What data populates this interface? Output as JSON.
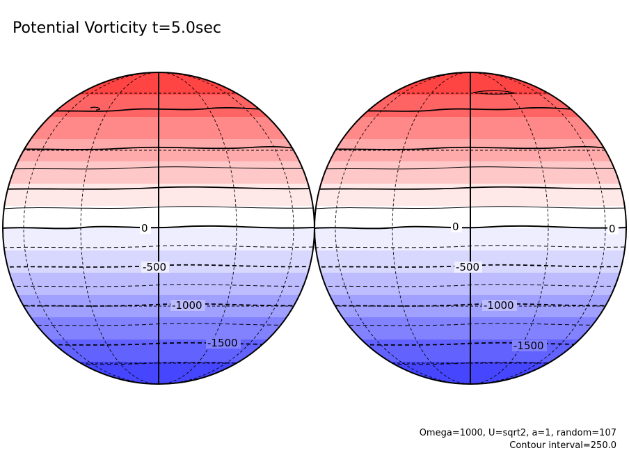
{
  "title": "Potential Vorticity t=5.0sec",
  "footer": {
    "params": "Omega=1000, U=sqrt2, a=1, random=107",
    "interval": "Contour interval=250.0"
  },
  "contour_labels": {
    "zero": "0",
    "m500": "-500",
    "m1000": "-1000",
    "m1500": "-1500"
  },
  "colors": {
    "top": "#ff3b3b",
    "mid": "#ffffff",
    "bottom": "#3b4dff"
  },
  "bands_north": [
    "#ff4444",
    "#ff6464",
    "#ff8888",
    "#ffaaaa",
    "#ffc8c8",
    "#ffe8e8"
  ],
  "bands_south": [
    "#eeeeff",
    "#d8d8ff",
    "#bcbcff",
    "#a0a0ff",
    "#8282ff",
    "#6262ff",
    "#4646ff"
  ]
}
